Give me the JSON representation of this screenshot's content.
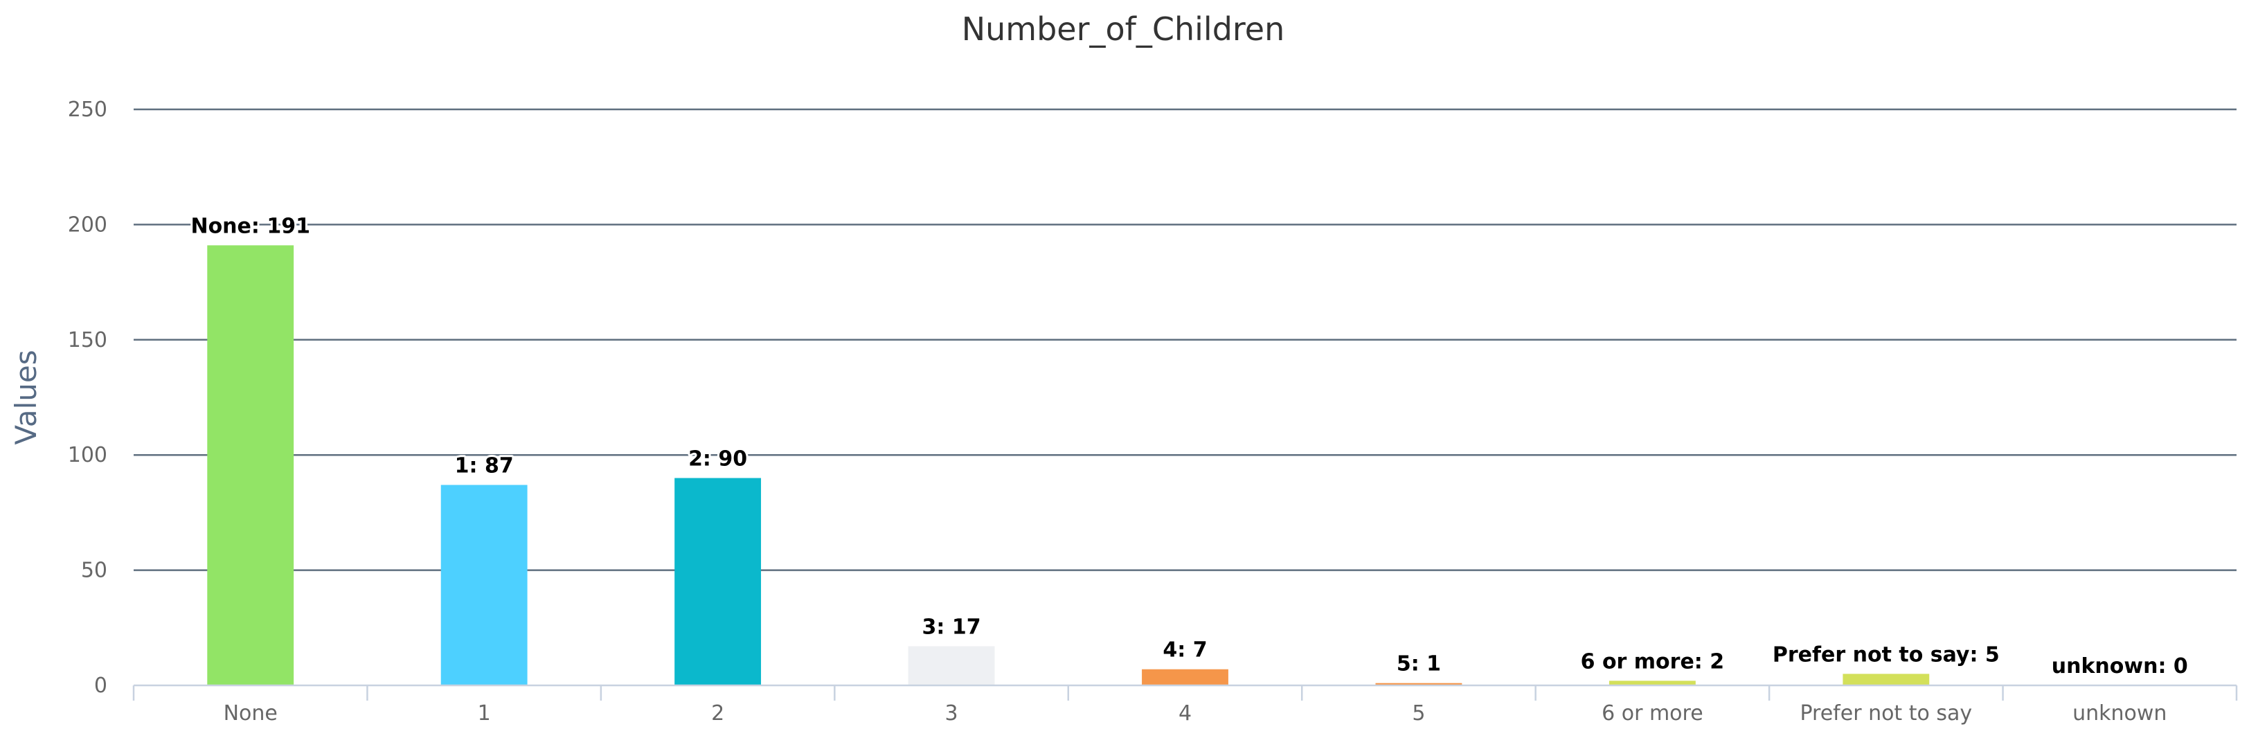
{
  "chart_data": {
    "type": "bar",
    "title": "Number_of_Children",
    "xlabel": "",
    "ylabel": "Values",
    "ylim": [
      0,
      250
    ],
    "yticks": [
      0,
      50,
      100,
      150,
      200,
      250
    ],
    "grid": true,
    "legend": "none",
    "categories": [
      "None",
      "1",
      "2",
      "3",
      "4",
      "5",
      "6 or more",
      "Prefer not to say",
      "unknown"
    ],
    "values": [
      191,
      87,
      90,
      17,
      7,
      1,
      2,
      5,
      0
    ],
    "data_labels": [
      "None: 191",
      "1: 87",
      "2: 90",
      "3: 17",
      "4: 7",
      "5: 1",
      "6 or more: 2",
      "Prefer not to say: 5",
      "unknown: 0"
    ],
    "colors": [
      "#92e466",
      "#4dd0ff",
      "#0bb8cc",
      "#eef0f3",
      "#f5964a",
      "#f5964a",
      "#d3e05a",
      "#d3e05a",
      "#cccccc"
    ]
  }
}
